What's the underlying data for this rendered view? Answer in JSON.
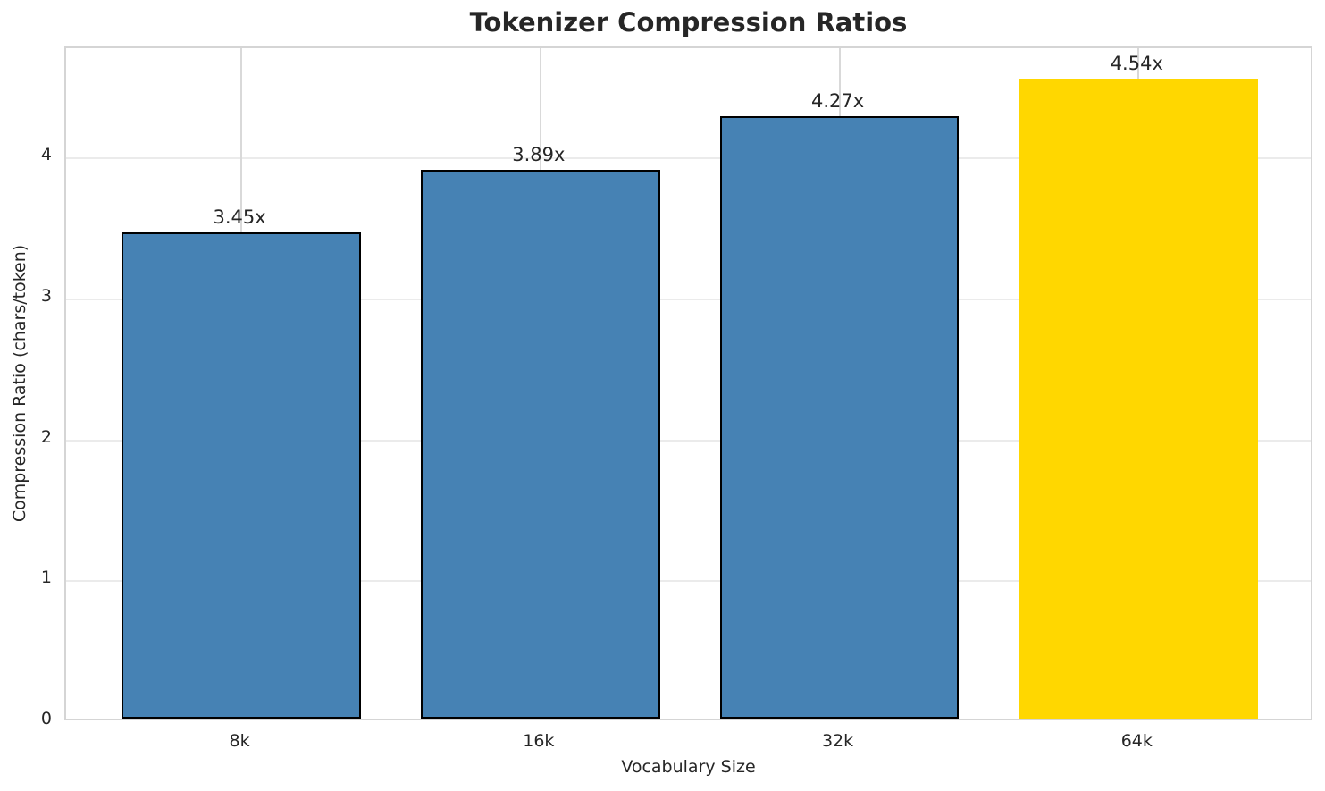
{
  "title": "Tokenizer Compression Ratios",
  "chart_data": {
    "type": "bar",
    "title": "Tokenizer Compression Ratios",
    "xlabel": "Vocabulary Size",
    "ylabel": "Compression Ratio (chars/token)",
    "categories": [
      "8k",
      "16k",
      "32k",
      "64k"
    ],
    "values": [
      3.45,
      3.89,
      4.27,
      4.54
    ],
    "bar_labels": [
      "3.45x",
      "3.89x",
      "4.27x",
      "4.54x"
    ],
    "yticks": [
      0,
      1,
      2,
      3,
      4
    ],
    "ylim": [
      0,
      4.78
    ],
    "grid": true,
    "legend_position": "none",
    "bar_colors": [
      "#4682B4",
      "#4682B4",
      "#4682B4",
      "#FFD700"
    ],
    "edge_colors": [
      "#000000",
      "#000000",
      "#000000",
      "none"
    ],
    "accent_color_highlight": "#FFD700",
    "accent_color_default": "#4682B4",
    "background_color": "#ffffff",
    "gridline_color_horizontal": "#ebebeb",
    "gridline_color_vertical": "#d9d9d9",
    "spine_color": "#d5d5d5",
    "text_color": "#262626"
  }
}
